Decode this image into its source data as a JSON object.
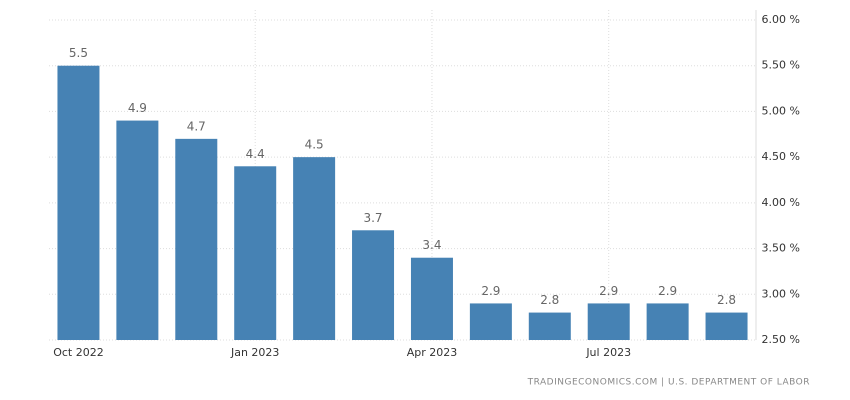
{
  "chart_data": {
    "type": "bar",
    "categories": [
      "Oct 2022",
      null,
      null,
      "Jan 2023",
      null,
      null,
      "Apr 2023",
      null,
      null,
      "Jul 2023",
      null,
      null
    ],
    "values": [
      5.5,
      4.9,
      4.7,
      4.4,
      4.5,
      3.7,
      3.4,
      2.9,
      2.8,
      2.9,
      2.9,
      2.8
    ],
    "color": "#4682b4",
    "ylim": [
      2.5,
      6
    ],
    "yticks": [
      {
        "value": 2.5,
        "label": "2.50 %"
      },
      {
        "value": 3,
        "label": "3.00 %"
      },
      {
        "value": 3.5,
        "label": "3.50 %"
      },
      {
        "value": 4,
        "label": "4.00 %"
      },
      {
        "value": 4.5,
        "label": "4.50 %"
      },
      {
        "value": 5,
        "label": "5.00 %"
      },
      {
        "value": 5.5,
        "label": "5.50 %"
      },
      {
        "value": 6,
        "label": "6.00 %"
      }
    ],
    "grid": true,
    "source": "TRADINGECONOMICS.COM | U.S. DEPARTMENT OF LABOR"
  }
}
